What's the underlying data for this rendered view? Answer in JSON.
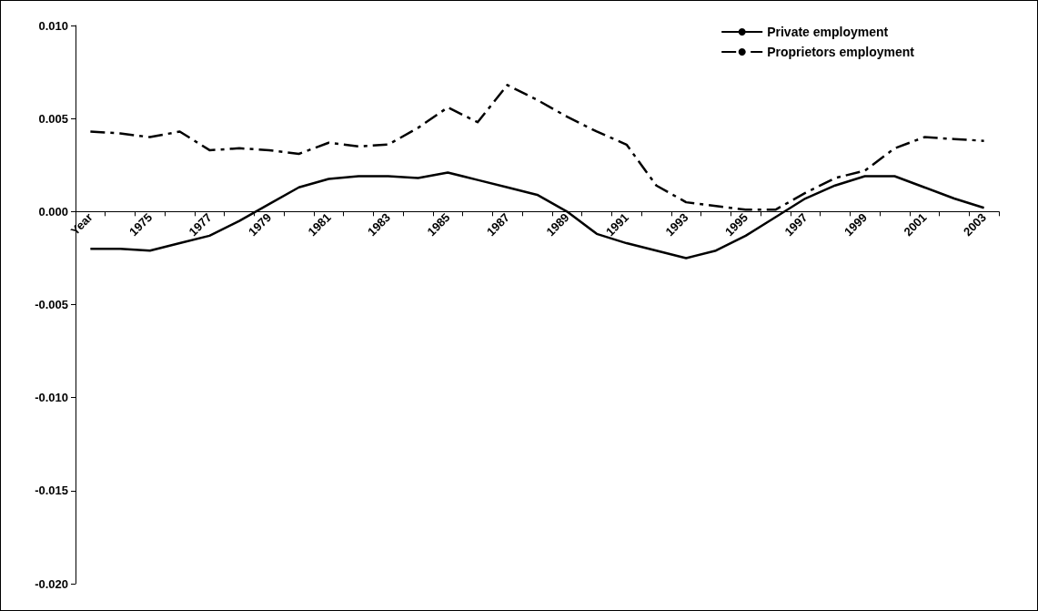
{
  "chart_data": {
    "type": "line",
    "categories": [
      "Year",
      null,
      "1975",
      null,
      "1977",
      null,
      "1979",
      null,
      "1981",
      null,
      "1983",
      null,
      "1985",
      null,
      "1987",
      null,
      "1989",
      null,
      "1991",
      null,
      "1993",
      null,
      "1995",
      null,
      "1997",
      null,
      "1999",
      null,
      "2001",
      null,
      "2003"
    ],
    "series": [
      {
        "name": "Private employment",
        "color": "#000000",
        "line_style": "solid",
        "values": [
          -0.002,
          -0.002,
          -0.0021,
          -0.0017,
          -0.0013,
          -0.0005,
          0.0004,
          0.0013,
          0.00175,
          0.0019,
          0.0019,
          0.0018,
          0.0021,
          0.0017,
          0.0013,
          0.0009,
          0.0,
          -0.0012,
          -0.0017,
          -0.0021,
          -0.0025,
          -0.0021,
          -0.0013,
          -0.0003,
          0.0007,
          0.0014,
          0.0019,
          0.0019,
          0.0013,
          0.0007,
          0.0002
        ]
      },
      {
        "name": "Proprietors employment",
        "color": "#000000",
        "line_style": "dashed",
        "values": [
          0.0043,
          0.0042,
          0.004,
          0.0043,
          0.0033,
          0.0034,
          0.0033,
          0.0031,
          0.0037,
          0.0035,
          0.0036,
          0.0045,
          0.0056,
          0.0048,
          0.0068,
          0.006,
          0.0051,
          0.0043,
          0.0036,
          0.0014,
          0.0005,
          0.0003,
          0.0001,
          0.0001,
          0.001,
          0.0018,
          0.0022,
          0.0034,
          0.004,
          0.0039,
          0.0038
        ]
      }
    ],
    "ylim": [
      -0.02,
      0.01
    ],
    "yticks": [
      {
        "value": -0.02,
        "label": "-0.020"
      },
      {
        "value": -0.015,
        "label": "-0.015"
      },
      {
        "value": -0.01,
        "label": "-0.010"
      },
      {
        "value": -0.005,
        "label": "-0.005"
      },
      {
        "value": 0,
        "label": "0.000"
      },
      {
        "value": 0.005,
        "label": "0.005"
      },
      {
        "value": 0.01,
        "label": "0.010"
      }
    ],
    "legend": "top right",
    "marker": "none"
  }
}
